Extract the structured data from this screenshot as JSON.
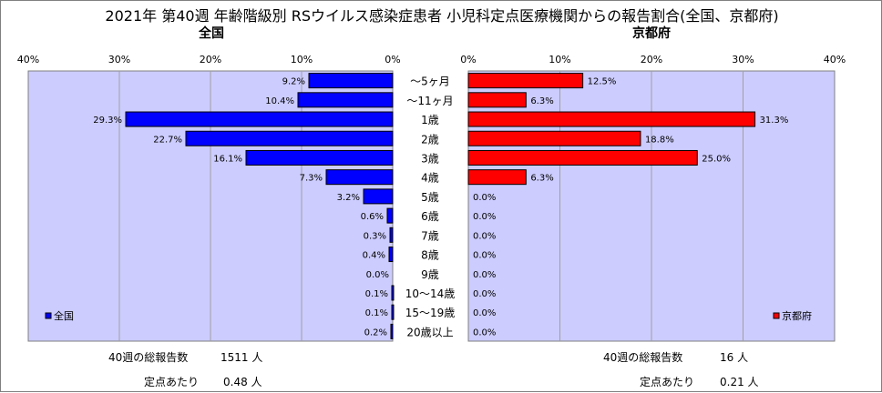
{
  "chart_data": {
    "type": "bar",
    "orientation": "horizontal-butterfly",
    "title": "2021年 第40週 年齢階級別 RSウイルス感染症患者 小児科定点医療機関からの報告割合(全国、京都府)",
    "categories": [
      "～5ヶ月",
      "～11ヶ月",
      "1歳",
      "2歳",
      "3歳",
      "4歳",
      "5歳",
      "6歳",
      "7歳",
      "8歳",
      "9歳",
      "10～14歳",
      "15～19歳",
      "20歳以上"
    ],
    "panels": [
      {
        "title": "全国",
        "series_name": "全国",
        "values": [
          9.2,
          10.4,
          29.3,
          22.7,
          16.1,
          7.3,
          3.2,
          0.6,
          0.3,
          0.4,
          0.0,
          0.1,
          0.1,
          0.2
        ],
        "value_labels": [
          "9.2%",
          "10.4%",
          "29.3%",
          "22.7%",
          "16.1%",
          "7.3%",
          "3.2%",
          "0.6%",
          "0.3%",
          "0.4%",
          "0.0%",
          "0.1%",
          "0.1%",
          "0.2%"
        ],
        "xlim": [
          0,
          40
        ],
        "ticks": [
          "40%",
          "30%",
          "20%",
          "10%",
          "0%"
        ],
        "reversed": true,
        "bar_color": "#0000ff",
        "legend": "bottom-left"
      },
      {
        "title": "京都府",
        "series_name": "京都府",
        "values": [
          12.5,
          6.3,
          31.3,
          18.8,
          25.0,
          6.3,
          0.0,
          0.0,
          0.0,
          0.0,
          0.0,
          0.0,
          0.0,
          0.0
        ],
        "value_labels": [
          "12.5%",
          "6.3%",
          "31.3%",
          "18.8%",
          "25.0%",
          "6.3%",
          "0.0%",
          "0.0%",
          "0.0%",
          "0.0%",
          "0.0%",
          "0.0%",
          "0.0%",
          "0.0%"
        ],
        "xlim": [
          0,
          40
        ],
        "ticks": [
          "0%",
          "10%",
          "20%",
          "30%",
          "40%"
        ],
        "reversed": false,
        "bar_color": "#ff0000",
        "legend": "bottom-right"
      }
    ],
    "plot_background": "#ccccff",
    "grid": true
  },
  "footer": {
    "left": {
      "total_label": "40週の総報告数",
      "total_value": "1511 人",
      "per_site_label": "定点あたり",
      "per_site_value": "0.48 人"
    },
    "right": {
      "total_label": "40週の総報告数",
      "total_value": "16 人",
      "per_site_label": "定点あたり",
      "per_site_value": "0.21 人"
    }
  }
}
